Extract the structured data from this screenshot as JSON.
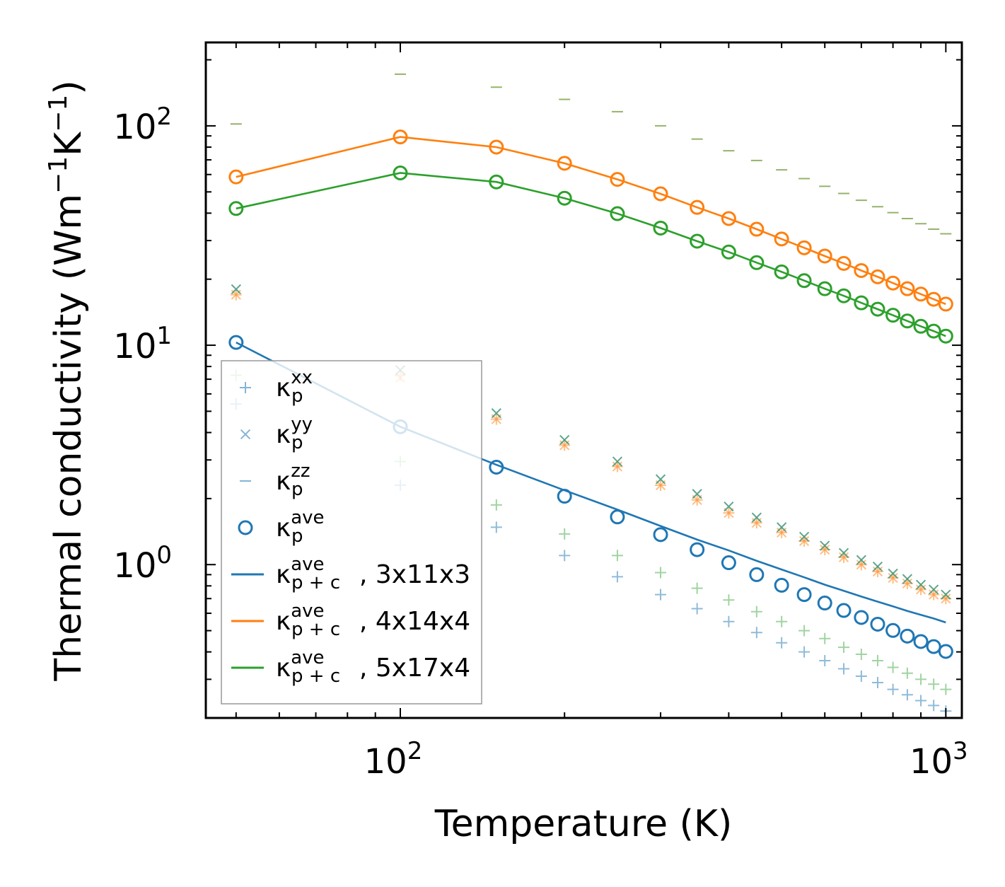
{
  "chart_data": {
    "type": "scatter",
    "title": "",
    "xlabel": "Temperature (K)",
    "ylabel": "Thermal conductivity (Wm",
    "ylabel_sup1": "−1",
    "ylabel_mid": "K",
    "ylabel_sup2": "−1",
    "ylabel_end": ")",
    "xscale": "log",
    "yscale": "log",
    "xlim": [
      44,
      1070
    ],
    "ylim": [
      0.2,
      240
    ],
    "xticks": [
      {
        "base": "10",
        "exp": "2",
        "value": 100
      },
      {
        "base": "10",
        "exp": "3",
        "value": 1000
      }
    ],
    "yticks": [
      {
        "base": "10",
        "exp": "0",
        "value": 1
      },
      {
        "base": "10",
        "exp": "1",
        "value": 10
      },
      {
        "base": "10",
        "exp": "2",
        "value": 100
      }
    ],
    "x": [
      50,
      100,
      150,
      200,
      250,
      300,
      350,
      400,
      450,
      500,
      550,
      600,
      650,
      700,
      750,
      800,
      850,
      900,
      950,
      1000
    ],
    "colors": {
      "blue": "#1f77b4",
      "orange": "#ff7f0e",
      "green": "#2ca02c",
      "olive": "#8aab5a"
    },
    "series": [
      {
        "name": "k_p_xx_3x11x3",
        "marker": "+",
        "color": "#1f77b4",
        "alpha": 0.5,
        "values": [
          5.4,
          2.3,
          1.48,
          1.1,
          0.88,
          0.73,
          0.63,
          0.55,
          0.49,
          0.44,
          0.4,
          0.365,
          0.335,
          0.31,
          0.29,
          0.27,
          0.255,
          0.24,
          0.228,
          0.215
        ]
      },
      {
        "name": "k_p_xx_4x14x4",
        "marker": "+",
        "color": "#ff7f0e",
        "alpha": 0.5,
        "values": [
          17.0,
          7.3,
          4.6,
          3.5,
          2.8,
          2.3,
          1.97,
          1.72,
          1.55,
          1.4,
          1.28,
          1.17,
          1.08,
          1.0,
          0.93,
          0.87,
          0.82,
          0.77,
          0.73,
          0.7
        ]
      },
      {
        "name": "k_p_xx_5x17x4",
        "marker": "+",
        "color": "#2ca02c",
        "alpha": 0.45,
        "values": [
          7.3,
          2.95,
          1.87,
          1.38,
          1.1,
          0.92,
          0.78,
          0.69,
          0.61,
          0.55,
          0.5,
          0.46,
          0.42,
          0.39,
          0.365,
          0.34,
          0.32,
          0.3,
          0.285,
          0.27
        ]
      },
      {
        "name": "k_p_yy_4x14x4",
        "marker": "x",
        "color": "#ff7f0e",
        "alpha": 0.5,
        "values": [
          17.0,
          7.1,
          4.6,
          3.5,
          2.8,
          2.3,
          1.97,
          1.72,
          1.55,
          1.4,
          1.28,
          1.17,
          1.08,
          1.0,
          0.93,
          0.87,
          0.82,
          0.77,
          0.73,
          0.7
        ]
      },
      {
        "name": "k_p_yy_5x17x4",
        "marker": "x",
        "color": "#2a8a6a",
        "alpha": 0.75,
        "values": [
          18.0,
          7.7,
          4.9,
          3.7,
          2.95,
          2.45,
          2.1,
          1.84,
          1.64,
          1.48,
          1.34,
          1.22,
          1.13,
          1.05,
          0.98,
          0.91,
          0.86,
          0.81,
          0.77,
          0.73
        ]
      },
      {
        "name": "k_p_zz_5x17x4",
        "marker": "_",
        "color": "#8aab5a",
        "alpha": 0.9,
        "values": [
          102,
          172,
          150,
          132,
          116,
          100,
          87,
          77,
          69.5,
          63,
          57.5,
          53,
          49.2,
          45.8,
          42.8,
          40.2,
          37.8,
          35.8,
          33.8,
          32.2
        ]
      },
      {
        "name": "k_p_ave_3x11x3",
        "marker": "o",
        "color": "#1f77b4",
        "alpha": 1.0,
        "values": [
          10.3,
          4.25,
          2.78,
          2.05,
          1.65,
          1.37,
          1.17,
          1.02,
          0.9,
          0.805,
          0.73,
          0.668,
          0.618,
          0.574,
          0.535,
          0.501,
          0.472,
          0.446,
          0.423,
          0.402
        ]
      },
      {
        "name": "k_p_ave_4x14x4",
        "marker": "o",
        "color": "#ff7f0e",
        "alpha": 1.0,
        "values": [
          58.5,
          89,
          80,
          67.5,
          57,
          49,
          42.5,
          37.8,
          33.8,
          30.5,
          27.8,
          25.5,
          23.6,
          21.9,
          20.5,
          19.2,
          18.1,
          17.1,
          16.2,
          15.4
        ]
      },
      {
        "name": "k_p_ave_5x17x4",
        "marker": "o",
        "color": "#2ca02c",
        "alpha": 1.0,
        "values": [
          42,
          61,
          55.5,
          46.8,
          39.8,
          34.2,
          29.8,
          26.6,
          23.8,
          21.6,
          19.7,
          18.1,
          16.8,
          15.6,
          14.6,
          13.7,
          12.9,
          12.2,
          11.6,
          11.0
        ]
      },
      {
        "name": "k_p+c_ave_3x11x3",
        "marker": "line",
        "color": "#1f77b4",
        "alpha": 1.0,
        "values": [
          10.3,
          4.25,
          2.85,
          2.18,
          1.78,
          1.5,
          1.3,
          1.16,
          1.04,
          0.95,
          0.875,
          0.81,
          0.76,
          0.715,
          0.678,
          0.645,
          0.615,
          0.59,
          0.568,
          0.545
        ]
      },
      {
        "name": "k_p+c_ave_4x14x4",
        "marker": "line",
        "color": "#ff7f0e",
        "alpha": 1.0,
        "values": [
          58.5,
          89,
          80,
          67.5,
          57,
          49,
          42.5,
          37.8,
          33.8,
          30.5,
          27.8,
          25.5,
          23.6,
          21.9,
          20.5,
          19.2,
          18.1,
          17.1,
          16.2,
          15.4
        ]
      },
      {
        "name": "k_p+c_ave_5x17x4",
        "marker": "line",
        "color": "#2ca02c",
        "alpha": 1.0,
        "values": [
          42,
          61,
          55.5,
          46.8,
          39.8,
          34.2,
          29.8,
          26.6,
          23.8,
          21.6,
          19.7,
          18.1,
          16.8,
          15.6,
          14.6,
          13.7,
          12.9,
          12.2,
          11.6,
          11.0
        ]
      }
    ],
    "legend": {
      "placement": "lower-left",
      "entries": [
        {
          "marker": "+",
          "color": "#1f77b4",
          "sym": "κ",
          "sub": "p",
          "sup": "xx",
          "tail": ""
        },
        {
          "marker": "x",
          "color": "#1f77b4",
          "sym": "κ",
          "sub": "p",
          "sup": "yy",
          "tail": ""
        },
        {
          "marker": "_",
          "color": "#1f77b4",
          "sym": "κ",
          "sub": "p",
          "sup": "zz",
          "tail": ""
        },
        {
          "marker": "o",
          "color": "#1f77b4",
          "sym": "κ",
          "sub": "p",
          "sup": "ave",
          "tail": ""
        },
        {
          "marker": "line",
          "color": "#1f77b4",
          "sym": "κ",
          "sub": "p + c",
          "sup": "ave",
          "tail": ", 3x11x3"
        },
        {
          "marker": "line",
          "color": "#ff7f0e",
          "sym": "κ",
          "sub": "p + c",
          "sup": "ave",
          "tail": ", 4x14x4"
        },
        {
          "marker": "line",
          "color": "#2ca02c",
          "sym": "κ",
          "sub": "p + c",
          "sup": "ave",
          "tail": ", 5x17x4"
        }
      ]
    }
  }
}
